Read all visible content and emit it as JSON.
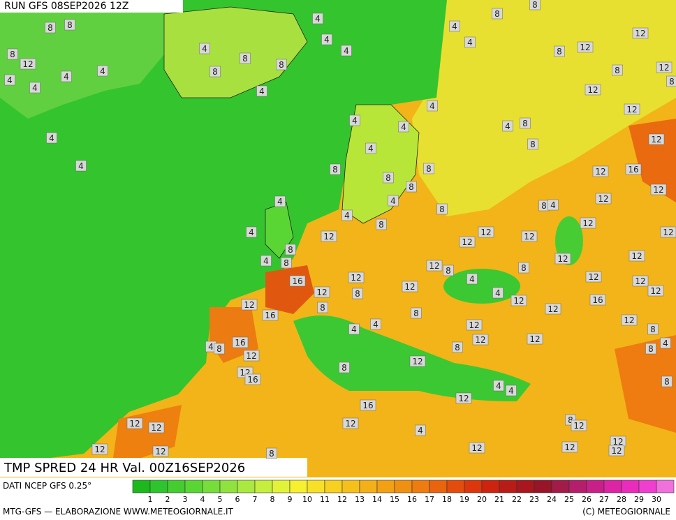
{
  "header": {
    "run": "RUN GFS 08SEP2026 12Z",
    "field": "TMP SPRED 24 HR Val. 00Z16SEP2026"
  },
  "footer": {
    "source": "DATI NCEP GFS 0.25°",
    "credit": "MTG-GFS — ELABORAZIONE WWW.METEOGIORNALE.IT",
    "copyright": "(C) METEOGIORNALE"
  },
  "colorbar": {
    "labels": [
      1,
      2,
      3,
      4,
      5,
      6,
      7,
      8,
      9,
      10,
      11,
      12,
      13,
      14,
      15,
      16,
      17,
      18,
      19,
      20,
      21,
      22,
      23,
      24,
      25,
      26,
      27,
      28,
      29,
      30
    ],
    "colors": [
      "#1cb81c",
      "#2ec42e",
      "#45cc30",
      "#5ad634",
      "#76dd3a",
      "#90e23e",
      "#aae842",
      "#c6ee3e",
      "#e2f238",
      "#f6f030",
      "#f8e028",
      "#f8d020",
      "#f6c01c",
      "#f4b018",
      "#f2a014",
      "#f09012",
      "#ee7c10",
      "#ea640e",
      "#e44c0c",
      "#dc360c",
      "#cc240e",
      "#b81c16",
      "#a8161e",
      "#981428",
      "#a21c4a",
      "#b41e6a",
      "#c82088",
      "#dc24a4",
      "#ea2cbc",
      "#f03ed0",
      "#f070dc"
    ]
  },
  "map_labels": [
    8,
    8,
    8,
    12,
    4,
    4,
    4,
    4,
    4,
    4,
    4,
    8,
    8,
    8,
    4,
    4,
    4,
    4,
    8,
    8,
    4,
    4,
    8,
    12,
    12,
    8,
    12,
    8,
    12,
    12,
    4,
    4,
    8,
    8,
    12,
    16,
    12,
    12,
    12,
    4,
    4,
    4,
    8,
    8,
    8,
    8,
    4,
    4,
    4,
    12,
    8,
    8,
    12,
    12,
    8,
    4,
    12,
    12,
    12,
    4,
    8,
    4,
    8,
    16,
    12,
    12,
    12,
    8,
    4,
    8,
    12,
    12,
    12,
    12,
    12,
    12,
    16,
    8,
    8,
    12,
    4,
    12,
    12,
    16,
    4,
    4,
    8,
    12,
    12,
    8,
    4,
    8,
    16,
    12,
    8,
    12,
    12,
    4,
    8,
    12,
    16,
    8,
    12,
    4,
    4,
    8,
    12,
    16,
    12,
    12,
    12,
    4,
    8,
    12,
    12,
    12,
    8,
    12,
    12,
    12,
    12
  ]
}
